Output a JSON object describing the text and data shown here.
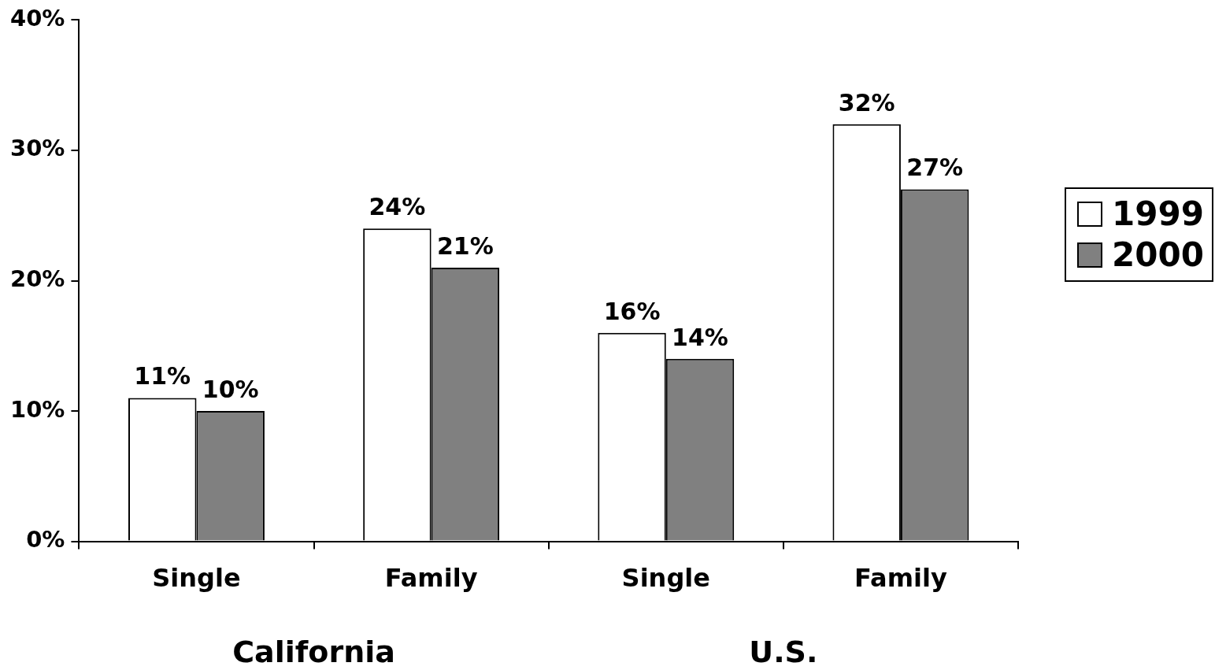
{
  "chart_data": {
    "type": "bar",
    "categories": [
      "Single",
      "Family",
      "Single",
      "Family"
    ],
    "series": [
      {
        "name": "1999",
        "color": "#ffffff",
        "values": [
          11,
          24,
          16,
          32
        ],
        "value_labels": [
          "11%",
          "24%",
          "16%",
          "32%"
        ]
      },
      {
        "name": "2000",
        "color": "#808080",
        "values": [
          10,
          21,
          14,
          27
        ],
        "value_labels": [
          "10%",
          "21%",
          "14%",
          "27%"
        ]
      }
    ],
    "ylim": [
      0,
      40
    ],
    "yticks": [
      {
        "value": 0,
        "label": "0%"
      },
      {
        "value": 10,
        "label": "10%"
      },
      {
        "value": 20,
        "label": "20%"
      },
      {
        "value": 30,
        "label": "30%"
      },
      {
        "value": 40,
        "label": "40%"
      }
    ],
    "annotations": [
      "California",
      "U.S."
    ],
    "grid": false,
    "legend": "right"
  }
}
